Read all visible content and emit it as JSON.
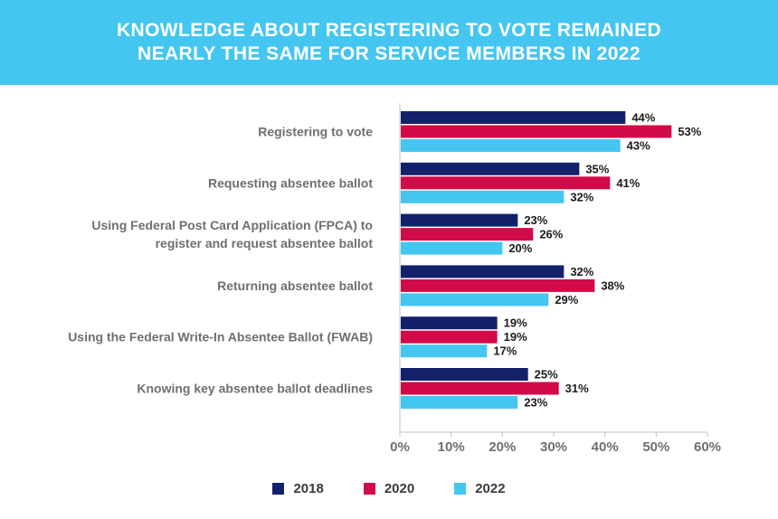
{
  "header": {
    "title_line1": "KNOWLEDGE ABOUT REGISTERING TO VOTE REMAINED",
    "title_line2": "NEARLY THE SAME FOR SERVICE MEMBERS IN 2022"
  },
  "colors": {
    "banner": "#44c6f1",
    "series_2018": "#13216a",
    "series_2020": "#d10b47",
    "series_2022": "#44c6f1"
  },
  "chart_data": {
    "type": "bar",
    "orientation": "horizontal",
    "title": "KNOWLEDGE ABOUT REGISTERING TO VOTE REMAINED NEARLY THE SAME FOR SERVICE MEMBERS IN 2022",
    "categories": [
      [
        "Registering to vote"
      ],
      [
        "Requesting absentee ballot"
      ],
      [
        "Using Federal Post Card Application (FPCA) to",
        "register and request absentee ballot"
      ],
      [
        "Returning absentee ballot"
      ],
      [
        "Using the Federal Write-In Absentee Ballot (FWAB)"
      ],
      [
        "Knowing key absentee ballot deadlines"
      ]
    ],
    "series": [
      {
        "name": "2018",
        "color": "#13216a",
        "values": [
          44,
          35,
          23,
          32,
          19,
          25
        ]
      },
      {
        "name": "2020",
        "color": "#d10b47",
        "values": [
          53,
          41,
          26,
          38,
          19,
          31
        ]
      },
      {
        "name": "2022",
        "color": "#44c6f1",
        "values": [
          43,
          32,
          20,
          29,
          17,
          23
        ]
      }
    ],
    "xlim": [
      0,
      60
    ],
    "xticks": [
      "0%",
      "10%",
      "20%",
      "30%",
      "40%",
      "50%",
      "60%"
    ],
    "value_suffix": "%",
    "grid": false,
    "legend_position": "bottom-center"
  },
  "legend": {
    "items": [
      {
        "label": "2018",
        "color": "#13216a"
      },
      {
        "label": "2020",
        "color": "#d10b47"
      },
      {
        "label": "2022",
        "color": "#44c6f1"
      }
    ]
  }
}
